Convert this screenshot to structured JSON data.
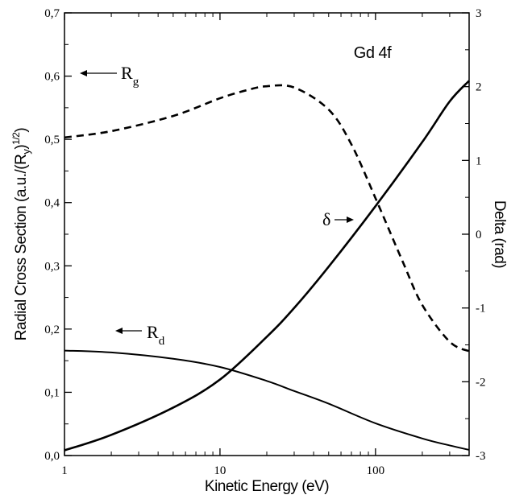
{
  "chart_data": {
    "type": "line",
    "title": "Gd 4f",
    "xlabel": "Kinetic Energy (eV)",
    "ylabel_left": "Radial Cross Section (a.u./(R",
    "ylabel_left_sub": "y",
    "ylabel_left_tail": ")",
    "ylabel_left_sup": "1/2",
    "ylabel_left_close": ")",
    "ylabel_right": "Delta (rad)",
    "x_scale": "log",
    "xlim": [
      1,
      400
    ],
    "ylim_left": [
      0,
      0.7
    ],
    "ylim_right": [
      -3,
      3
    ],
    "x_ticks": [
      {
        "value": 1,
        "label": "1"
      },
      {
        "value": 10,
        "label": "10"
      },
      {
        "value": 100,
        "label": "100"
      }
    ],
    "y_left_ticks": [
      {
        "value": 0.0,
        "label": "0,0"
      },
      {
        "value": 0.1,
        "label": "0,1"
      },
      {
        "value": 0.2,
        "label": "0,2"
      },
      {
        "value": 0.3,
        "label": "0,3"
      },
      {
        "value": 0.4,
        "label": "0,4"
      },
      {
        "value": 0.5,
        "label": "0,5"
      },
      {
        "value": 0.6,
        "label": "0,6"
      },
      {
        "value": 0.7,
        "label": "0,7"
      }
    ],
    "y_right_ticks": [
      {
        "value": -3,
        "label": "-3"
      },
      {
        "value": -2,
        "label": "-2"
      },
      {
        "value": -1,
        "label": "-1"
      },
      {
        "value": 0,
        "label": "0"
      },
      {
        "value": 1,
        "label": "1"
      },
      {
        "value": 2,
        "label": "2"
      },
      {
        "value": 3,
        "label": "3"
      }
    ],
    "series": [
      {
        "name": "Rg",
        "axis": "left",
        "style": "dashed",
        "x": [
          1,
          2,
          5,
          10,
          15,
          20,
          30,
          50,
          70,
          100,
          150,
          200,
          300,
          400
        ],
        "y": [
          0.503,
          0.513,
          0.537,
          0.565,
          0.578,
          0.584,
          0.582,
          0.547,
          0.492,
          0.407,
          0.306,
          0.238,
          0.18,
          0.165
        ]
      },
      {
        "name": "Rd",
        "axis": "left",
        "style": "solid",
        "x": [
          1,
          2,
          5,
          10,
          20,
          30,
          50,
          100,
          200,
          300,
          400
        ],
        "y": [
          0.166,
          0.163,
          0.153,
          0.14,
          0.118,
          0.102,
          0.082,
          0.051,
          0.027,
          0.016,
          0.009
        ]
      },
      {
        "name": "δ",
        "axis": "right",
        "style": "solid",
        "x": [
          1,
          2,
          5,
          10,
          20,
          30,
          50,
          100,
          200,
          300,
          400
        ],
        "y": [
          -2.93,
          -2.72,
          -2.35,
          -1.97,
          -1.39,
          -1.0,
          -0.44,
          0.38,
          1.25,
          1.8,
          2.08
        ]
      }
    ],
    "annotations": [
      {
        "name": "rg-label",
        "text": "R",
        "sub": "g",
        "arrow": "left"
      },
      {
        "name": "rd-label",
        "text": "R",
        "sub": "d",
        "arrow": "left"
      },
      {
        "name": "delta-label",
        "text": "δ",
        "arrow": "right"
      }
    ]
  }
}
